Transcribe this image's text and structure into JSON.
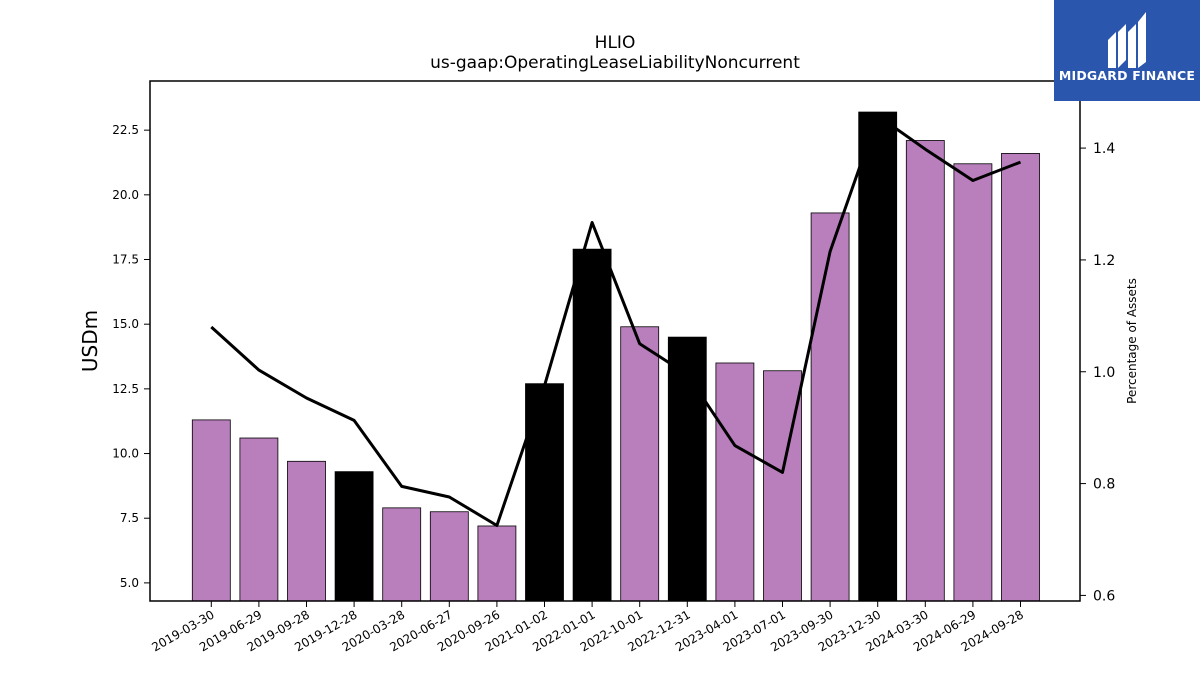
{
  "chart_data": {
    "type": "bar",
    "title": "HLIO",
    "subtitle": "us-gaap:OperatingLeaseLiabilityNoncurrent",
    "ylabel": "USDm",
    "y2label": "Percentage of Assets",
    "ylim": [
      4.3,
      24.4
    ],
    "y2lim": [
      0.59,
      1.52
    ],
    "yticks": [
      "5.0",
      "7.5",
      "10.0",
      "12.5",
      "15.0",
      "17.5",
      "20.0",
      "22.5"
    ],
    "y2ticks": [
      "0.6",
      "0.8",
      "1.0",
      "1.2",
      "1.4"
    ],
    "categories": [
      "2019-03-30",
      "2019-06-29",
      "2019-09-28",
      "2019-12-28",
      "2020-03-28",
      "2020-06-27",
      "2020-09-26",
      "2021-01-02",
      "2022-01-01",
      "2022-10-01",
      "2022-12-31",
      "2023-04-01",
      "2023-07-01",
      "2023-09-30",
      "2023-12-30",
      "2024-03-30",
      "2024-06-29",
      "2024-09-28"
    ],
    "series": [
      {
        "type": "bar",
        "values": [
          11.3,
          10.6,
          9.7,
          9.3,
          7.9,
          7.75,
          7.2,
          12.7,
          17.9,
          14.9,
          14.5,
          13.5,
          13.2,
          19.3,
          23.2,
          22.1,
          21.2,
          21.6
        ],
        "colors": [
          "#b97fbd",
          "#b97fbd",
          "#b97fbd",
          "#000000",
          "#b97fbd",
          "#b97fbd",
          "#b97fbd",
          "#000000",
          "#000000",
          "#b97fbd",
          "#000000",
          "#b97fbd",
          "#b97fbd",
          "#b97fbd",
          "#000000",
          "#b97fbd",
          "#b97fbd",
          "#b97fbd"
        ]
      },
      {
        "type": "line",
        "axis": "right",
        "values": [
          1.08,
          1.003,
          0.953,
          0.913,
          0.795,
          0.776,
          0.725,
          0.975,
          1.267,
          1.05,
          0.995,
          0.868,
          0.82,
          1.215,
          1.458,
          1.398,
          1.342,
          1.375
        ],
        "color": "#000000"
      }
    ]
  },
  "logo": {
    "text": "MIDGARD FINANCE",
    "bg": "#2b56ad"
  }
}
